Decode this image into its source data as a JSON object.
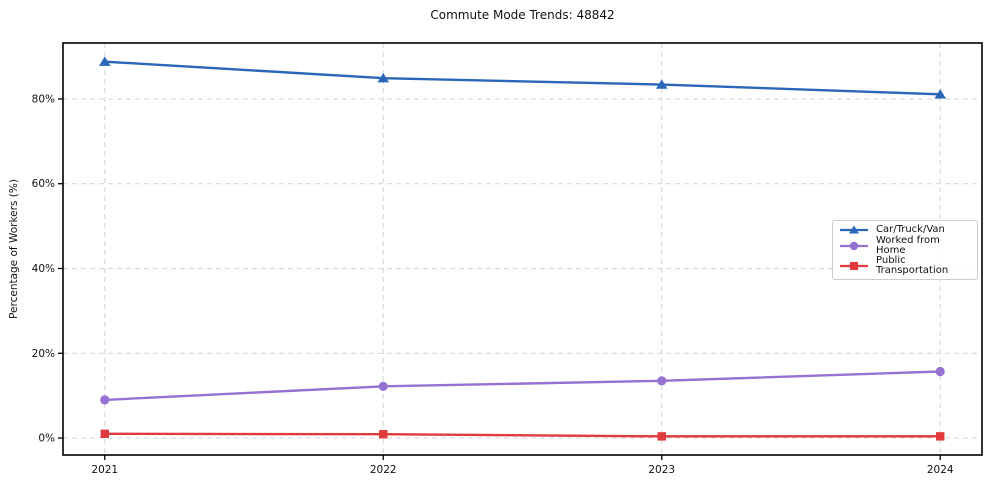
{
  "chart_data": {
    "type": "line",
    "title": "Commute Mode Trends: 48842",
    "xlabel": "",
    "ylabel": "Percentage of Workers (%)",
    "x": [
      2021,
      2022,
      2023,
      2024
    ],
    "x_tick_labels": [
      "2021",
      "2022",
      "2023",
      "2024"
    ],
    "y_ticks": [
      0,
      20,
      40,
      60,
      80
    ],
    "y_tick_labels": [
      "0%",
      "20%",
      "40%",
      "60%",
      "80%"
    ],
    "xlim": [
      2020.85,
      2024.15
    ],
    "ylim": [
      -4,
      93.2
    ],
    "grid": true,
    "grid_style": "dashed",
    "grid_color": "#d3d3d3",
    "axes_border_color": "#000000",
    "legend_position": "center-right",
    "series": [
      {
        "name": "Car/Truck/Van",
        "marker": "triangle",
        "color": "#2a67b8",
        "values": [
          88.8,
          84.9,
          83.4,
          81.1
        ]
      },
      {
        "name": "Worked from Home",
        "marker": "circle",
        "color": "#9571d2",
        "values": [
          9.0,
          12.2,
          13.5,
          15.7
        ]
      },
      {
        "name": "Public Transportation",
        "marker": "square",
        "color": "#e03a3c",
        "values": [
          1.0,
          0.9,
          0.4,
          0.4
        ]
      }
    ]
  }
}
